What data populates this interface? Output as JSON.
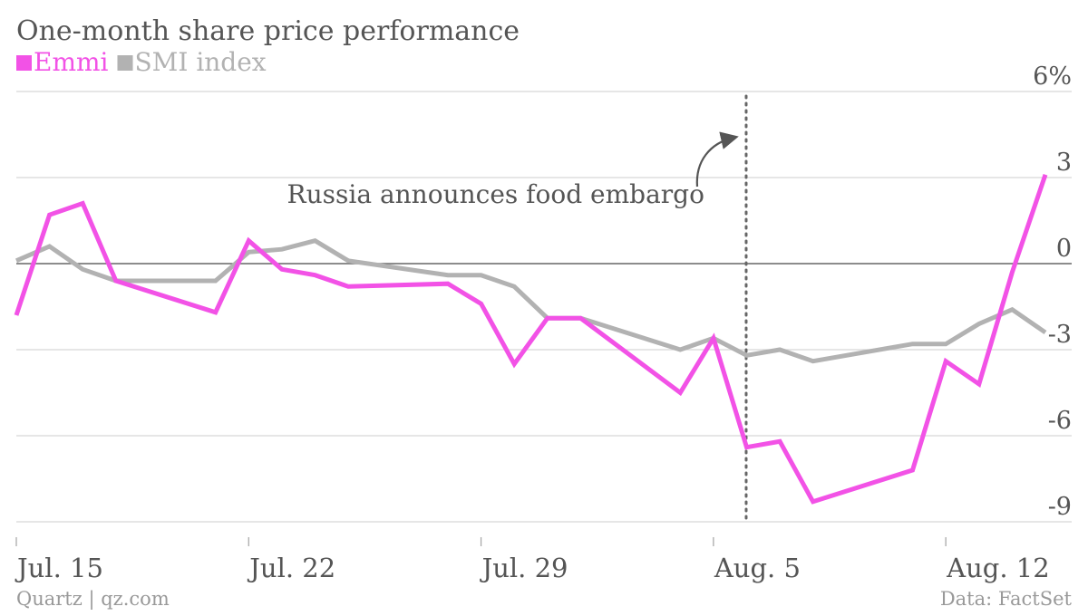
{
  "chart_data": {
    "type": "line",
    "title": "One-month share price performance",
    "ylabel": "",
    "xlabel": "",
    "ylim": [
      -9,
      6
    ],
    "y_ticks": [
      {
        "value": 6,
        "label": "6%"
      },
      {
        "value": 3,
        "label": "3"
      },
      {
        "value": 0,
        "label": "0"
      },
      {
        "value": -3,
        "label": "-3"
      },
      {
        "value": -6,
        "label": "-6"
      },
      {
        "value": -9,
        "label": "-9"
      }
    ],
    "x_ticks": [
      {
        "label": "Jul. 15",
        "date": "2014-07-15"
      },
      {
        "label": "Jul. 22",
        "date": "2014-07-22"
      },
      {
        "label": "Jul. 29",
        "date": "2014-07-29"
      },
      {
        "label": "Aug. 5",
        "date": "2014-08-05"
      },
      {
        "label": "Aug. 12",
        "date": "2014-08-12"
      }
    ],
    "x_range": [
      "2014-07-15",
      "2014-08-15"
    ],
    "grid": true,
    "legend_placement": "top-left",
    "series": [
      {
        "name": "Emmi",
        "color": "#f252e6",
        "points": [
          [
            "2014-07-15",
            -1.8
          ],
          [
            "2014-07-16",
            1.7
          ],
          [
            "2014-07-17",
            2.1
          ],
          [
            "2014-07-18",
            -0.6
          ],
          [
            "2014-07-21",
            -1.7
          ],
          [
            "2014-07-22",
            0.8
          ],
          [
            "2014-07-23",
            -0.2
          ],
          [
            "2014-07-24",
            -0.4
          ],
          [
            "2014-07-25",
            -0.8
          ],
          [
            "2014-07-28",
            -0.7
          ],
          [
            "2014-07-29",
            -1.4
          ],
          [
            "2014-07-30",
            -3.5
          ],
          [
            "2014-07-31",
            -1.9
          ],
          [
            "2014-08-01",
            -1.9
          ],
          [
            "2014-08-04",
            -4.5
          ],
          [
            "2014-08-05",
            -2.6
          ],
          [
            "2014-08-06",
            -6.4
          ],
          [
            "2014-08-07",
            -6.2
          ],
          [
            "2014-08-08",
            -8.3
          ],
          [
            "2014-08-11",
            -7.2
          ],
          [
            "2014-08-12",
            -3.4
          ],
          [
            "2014-08-13",
            -4.2
          ],
          [
            "2014-08-14",
            -0.3
          ],
          [
            "2014-08-15",
            3.1
          ]
        ]
      },
      {
        "name": "SMI index",
        "color": "#b2b2b2",
        "points": [
          [
            "2014-07-15",
            0.1
          ],
          [
            "2014-07-16",
            0.6
          ],
          [
            "2014-07-17",
            -0.2
          ],
          [
            "2014-07-18",
            -0.6
          ],
          [
            "2014-07-21",
            -0.6
          ],
          [
            "2014-07-22",
            0.4
          ],
          [
            "2014-07-23",
            0.5
          ],
          [
            "2014-07-24",
            0.8
          ],
          [
            "2014-07-25",
            0.1
          ],
          [
            "2014-07-28",
            -0.4
          ],
          [
            "2014-07-29",
            -0.4
          ],
          [
            "2014-07-30",
            -0.8
          ],
          [
            "2014-07-31",
            -1.9
          ],
          [
            "2014-08-01",
            -1.9
          ],
          [
            "2014-08-04",
            -3.0
          ],
          [
            "2014-08-05",
            -2.6
          ],
          [
            "2014-08-06",
            -3.2
          ],
          [
            "2014-08-07",
            -3.0
          ],
          [
            "2014-08-08",
            -3.4
          ],
          [
            "2014-08-11",
            -2.8
          ],
          [
            "2014-08-12",
            -2.8
          ],
          [
            "2014-08-13",
            -2.1
          ],
          [
            "2014-08-14",
            -1.6
          ],
          [
            "2014-08-15",
            -2.4
          ]
        ]
      }
    ],
    "annotations": [
      {
        "text": "Russia announces food embargo",
        "date": "2014-08-06",
        "style": "dotted-vertical-line"
      }
    ]
  },
  "footer": {
    "source_left": "Quartz | qz.com",
    "source_right": "Data: FactSet"
  },
  "colors": {
    "title": "#555555",
    "tick_text": "#555555",
    "footer_text": "#999999",
    "gridline": "#d8d8d8",
    "zero_line": "#666666",
    "annotation_line": "#666666"
  }
}
